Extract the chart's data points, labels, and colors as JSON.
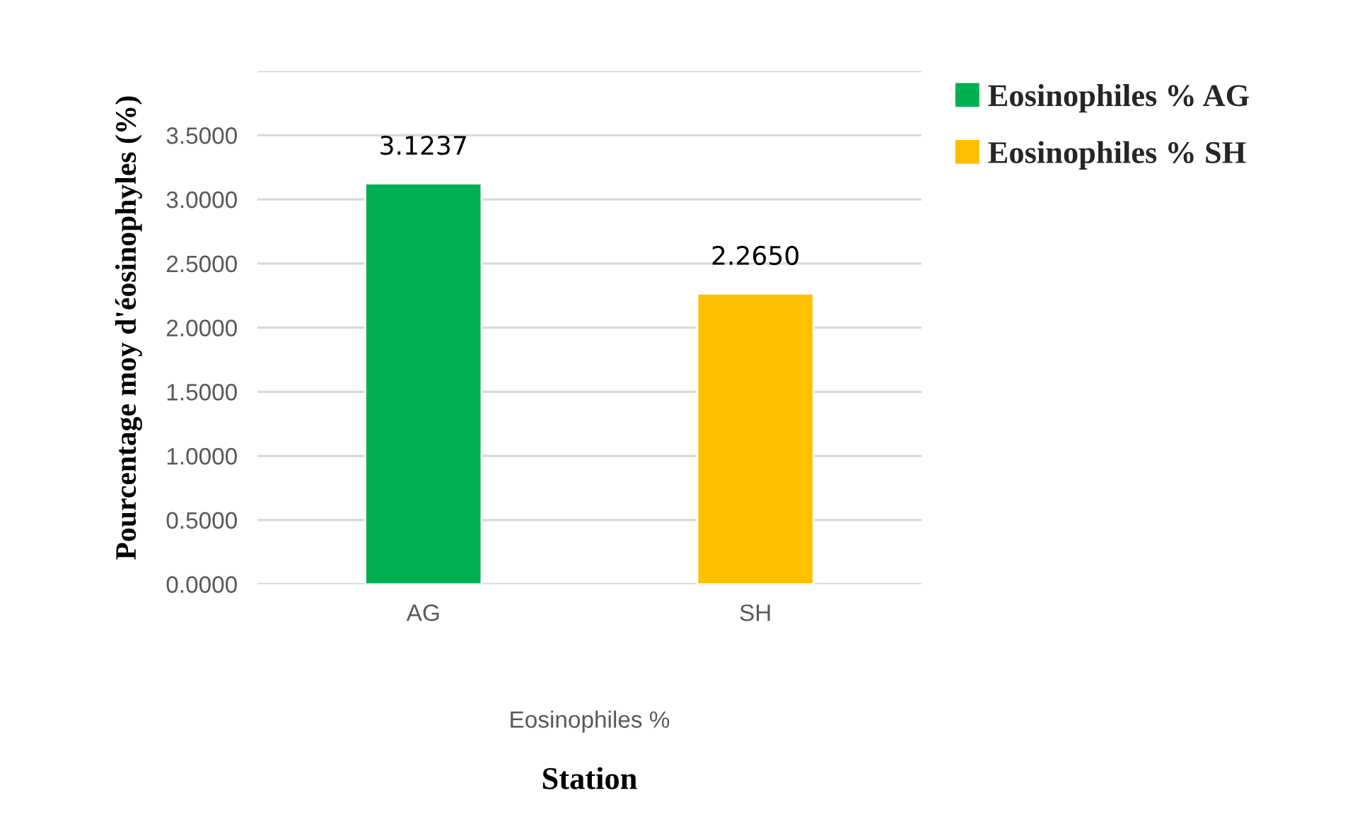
{
  "chart_data": {
    "type": "bar",
    "categories": [
      "AG",
      "SH"
    ],
    "series": [
      {
        "name": "Eosinophiles % AG",
        "color": "#00b050",
        "values": [
          3.1237,
          null
        ],
        "value_labels": [
          "3.1237",
          null
        ]
      },
      {
        "name": "Eosinophiles % SH",
        "color": "#ffc000",
        "values": [
          null,
          2.265
        ],
        "value_labels": [
          null,
          "2.2650"
        ]
      }
    ],
    "ylabel": "Pourcentage moy d'éosinophyles (%)",
    "xlabel": "Station",
    "annotations": [
      "Eosinophiles %"
    ],
    "ylim": [
      0,
      4
    ],
    "yticks": [
      {
        "value": 0,
        "label": "0.0000"
      },
      {
        "value": 0.5,
        "label": "0.5000"
      },
      {
        "value": 1,
        "label": "1.0000"
      },
      {
        "value": 1.5,
        "label": "1.5000"
      },
      {
        "value": 2,
        "label": "2.0000"
      },
      {
        "value": 2.5,
        "label": "2.5000"
      },
      {
        "value": 3,
        "label": "3.0000"
      },
      {
        "value": 3.5,
        "label": "3.5000"
      },
      {
        "value": 4,
        "label": null
      }
    ],
    "grid": "y",
    "legend": "top right"
  }
}
